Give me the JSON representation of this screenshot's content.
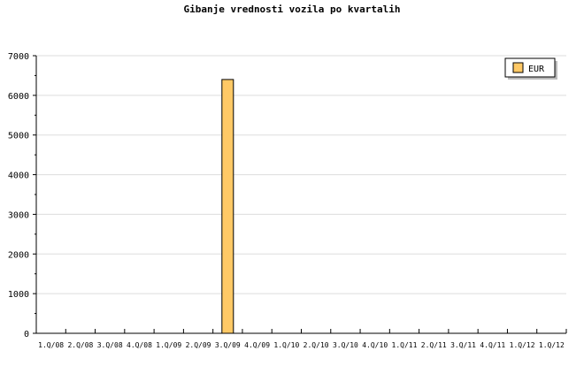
{
  "chart_data": {
    "type": "bar",
    "title": "Gibanje vrednosti vozila po kvartalih",
    "categories": [
      "1.Q/08",
      "2.Q/08",
      "3.Q/08",
      "4.Q/08",
      "1.Q/09",
      "2.Q/09",
      "3.Q/09",
      "4.Q/09",
      "1.Q/10",
      "2.Q/10",
      "3.Q/10",
      "4.Q/10",
      "1.Q/11",
      "2.Q/11",
      "3.Q/11",
      "4.Q/11",
      "1.Q/12",
      "1.Q/12"
    ],
    "series": [
      {
        "name": "EUR",
        "values": [
          0,
          0,
          0,
          0,
          0,
          0,
          6400,
          0,
          0,
          0,
          0,
          0,
          0,
          0,
          0,
          0,
          0,
          0
        ],
        "color": "#ffc966"
      }
    ],
    "ylim": [
      0,
      7000
    ],
    "yticks": [
      0,
      1000,
      2000,
      3000,
      4000,
      5000,
      6000,
      7000
    ],
    "grid": true,
    "legend": "top-right"
  }
}
